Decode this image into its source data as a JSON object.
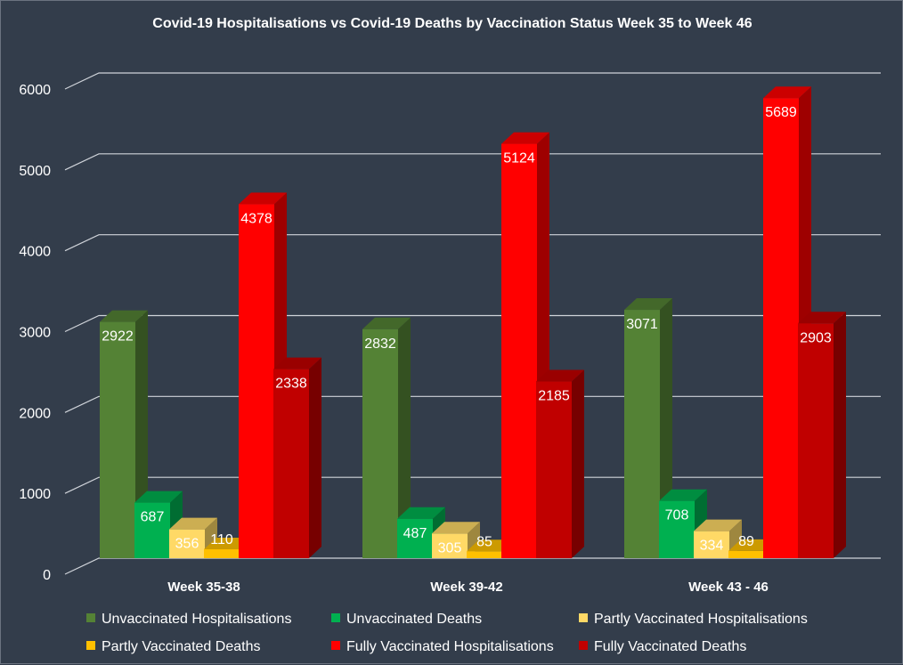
{
  "chart_data": {
    "type": "bar",
    "title": "Covid-19 Hospitalisations  vs Covid-19 Deaths by Vaccination Status Week 35 to Week 46",
    "categories": [
      "Week 35-38",
      "Week 39-42",
      "Week 43 - 46"
    ],
    "yticks": [
      "0",
      "1000",
      "2000",
      "3000",
      "4000",
      "5000",
      "6000"
    ],
    "ylim": [
      0,
      6000
    ],
    "grid": true,
    "legend_position": "bottom",
    "series": [
      {
        "name": "Unvaccinated Hospitalisations",
        "values": [
          2922,
          2832,
          3071
        ],
        "labels": [
          "2922",
          "2832",
          "3071"
        ],
        "color": "#548235"
      },
      {
        "name": "Unvaccinated Deaths",
        "values": [
          687,
          487,
          708
        ],
        "labels": [
          "687",
          "487",
          "708"
        ],
        "color": "#00b050"
      },
      {
        "name": "Partly Vaccinated Hospitalisations",
        "values": [
          356,
          305,
          334
        ],
        "labels": [
          "356",
          "305",
          "334"
        ],
        "color": "#ffd966"
      },
      {
        "name": "Partly Vaccinated Deaths",
        "values": [
          110,
          85,
          89
        ],
        "labels": [
          "110",
          "85",
          "89"
        ],
        "color": "#ffc000"
      },
      {
        "name": "Fully Vaccinated Hospitalisations",
        "values": [
          4378,
          5124,
          5689
        ],
        "labels": [
          "4378",
          "5124",
          "5689"
        ],
        "color": "#ff0000"
      },
      {
        "name": "Fully Vaccinated Deaths",
        "values": [
          2338,
          2185,
          2903
        ],
        "labels": [
          "2338",
          "2185",
          "2903"
        ],
        "color": "#c00000"
      }
    ]
  }
}
